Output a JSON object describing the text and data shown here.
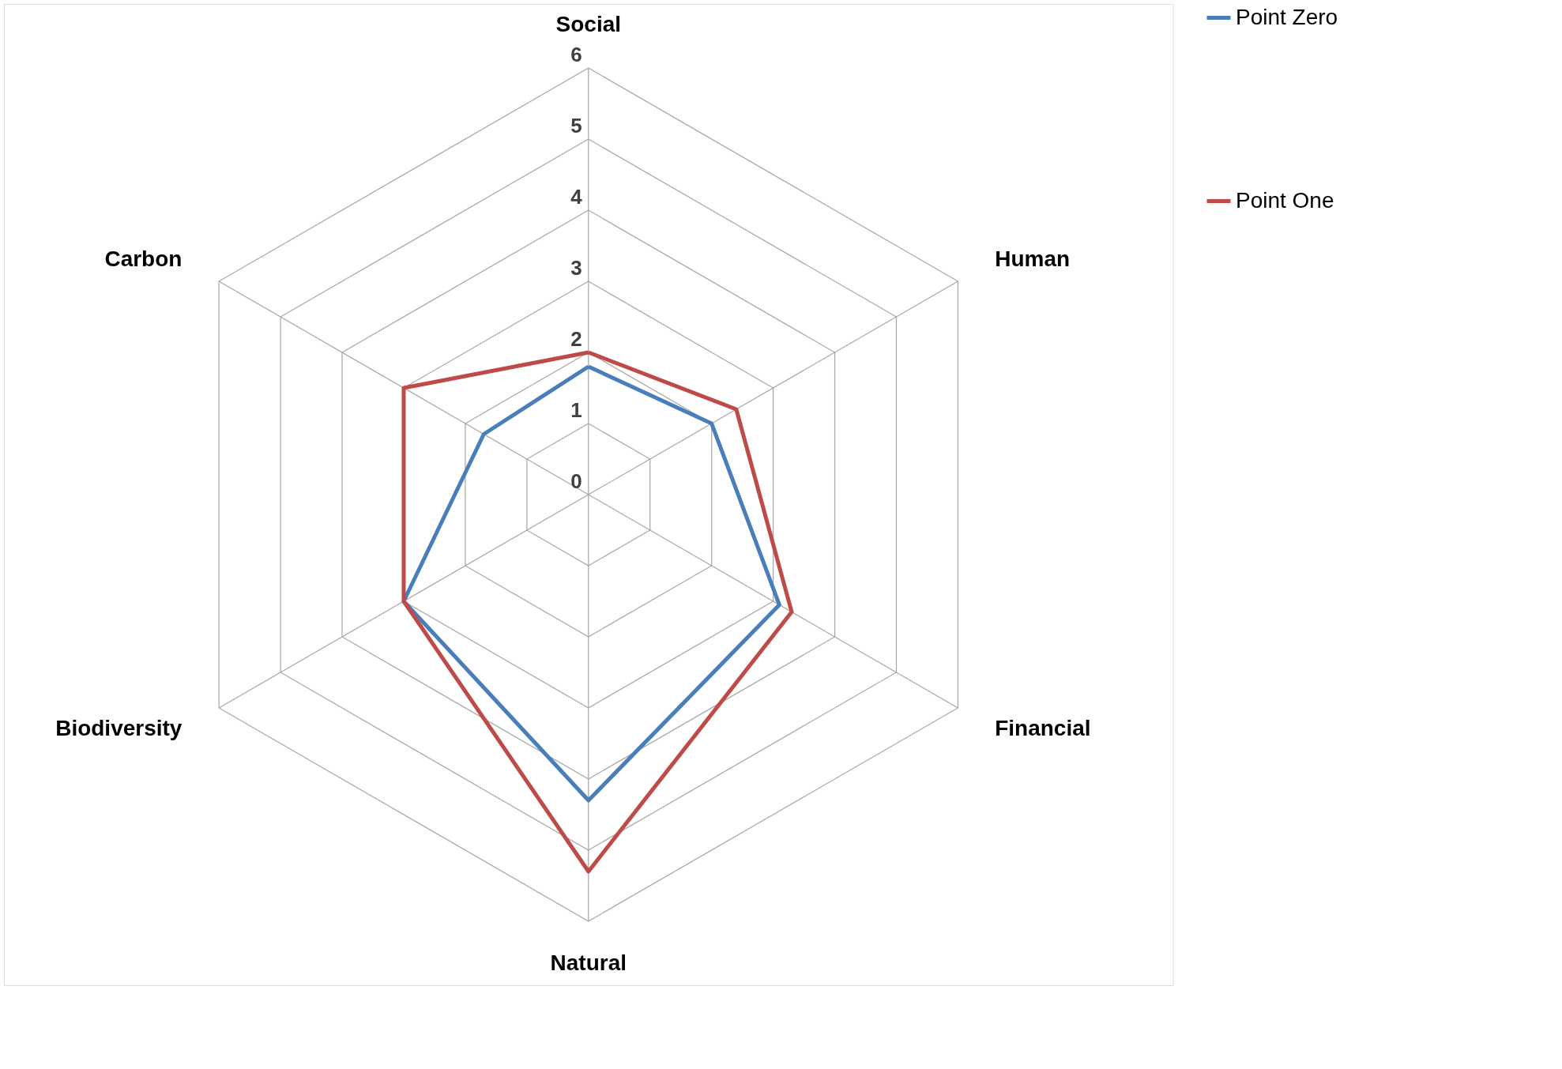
{
  "chart_data": {
    "type": "radar",
    "categories": [
      "Social",
      "Human",
      "Financial",
      "Natural",
      "Biodiversity",
      "Carbon"
    ],
    "series": [
      {
        "name": "Point Zero",
        "color": "#4a7ebb",
        "values": [
          1.8,
          2.0,
          3.1,
          4.3,
          3.0,
          1.7
        ]
      },
      {
        "name": "Point One",
        "color": "#be4b48",
        "values": [
          2.0,
          2.4,
          3.3,
          5.3,
          3.0,
          3.0
        ]
      }
    ],
    "ylim": [
      0,
      6
    ],
    "yticks": [
      0,
      1,
      2,
      3,
      4,
      5,
      6
    ],
    "grid": true,
    "legend": "right"
  }
}
